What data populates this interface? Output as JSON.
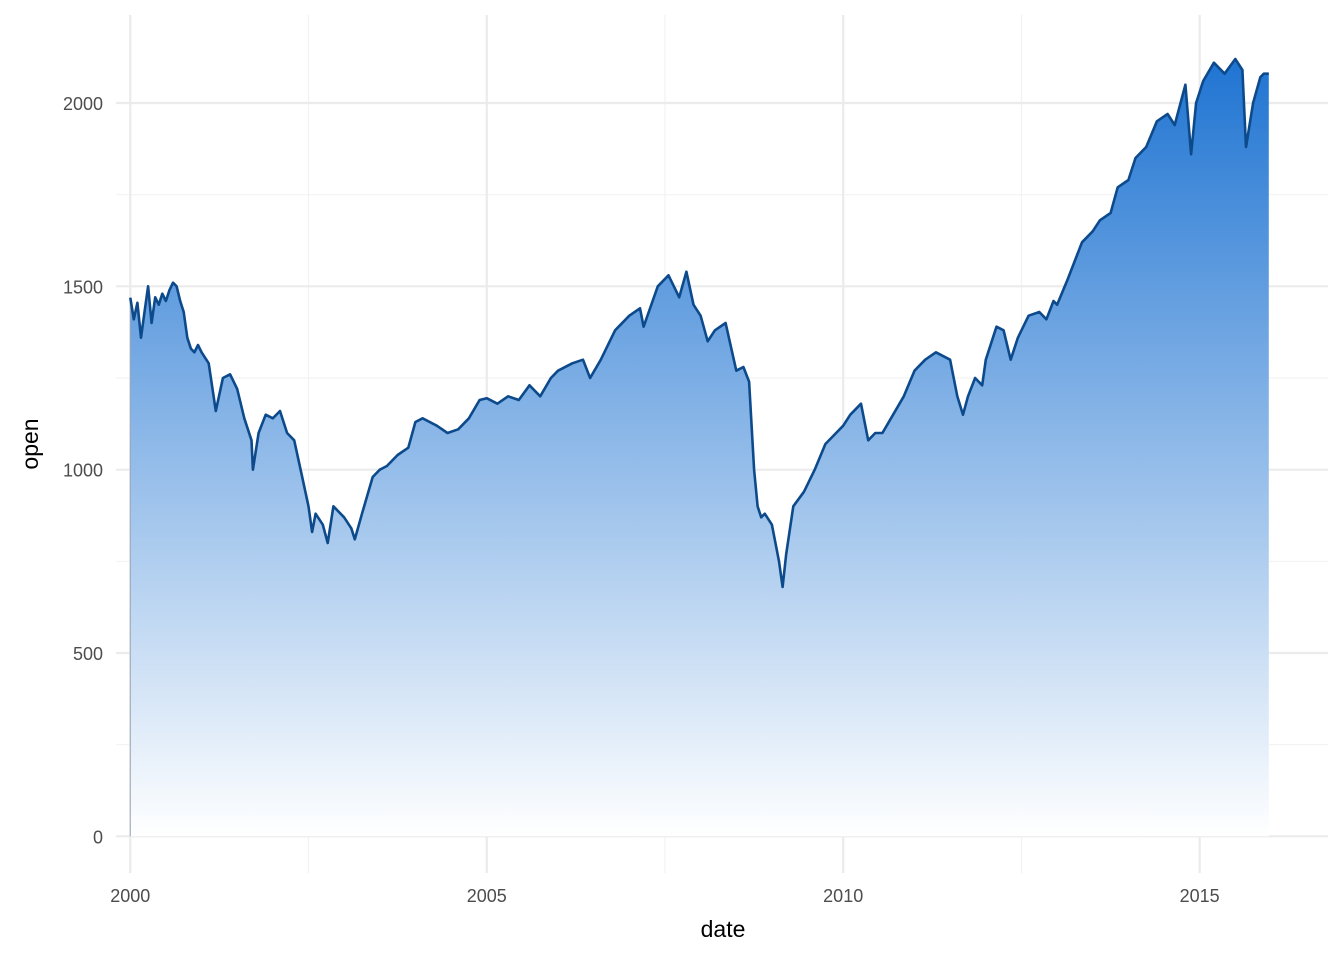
{
  "chart_data": {
    "type": "area",
    "title": "",
    "xlabel": "date",
    "ylabel": "open",
    "xlim": [
      1999.8,
      2016.8
    ],
    "ylim": [
      -100,
      2240
    ],
    "x_ticks": [
      2000,
      2005,
      2010,
      2015
    ],
    "x_tick_labels": [
      "2000",
      "2005",
      "2010",
      "2015"
    ],
    "y_ticks": [
      0,
      500,
      1000,
      1500,
      2000
    ],
    "y_tick_labels": [
      "0",
      "500",
      "1000",
      "1500",
      "2000"
    ],
    "grid": true,
    "legend": "none",
    "colors": {
      "line": "#0d4a8b",
      "fill_top": "#1f74d2",
      "fill_bottom": "#ffffff",
      "grid": "#ebebeb"
    },
    "series": [
      {
        "x": [
          2000.0,
          2000.05,
          2000.1,
          2000.15,
          2000.2,
          2000.25,
          2000.3,
          2000.35,
          2000.4,
          2000.45,
          2000.5,
          2000.55,
          2000.6,
          2000.65,
          2000.7,
          2000.75,
          2000.8,
          2000.85,
          2000.9,
          2000.95,
          2001.0,
          2001.1,
          2001.2,
          2001.3,
          2001.4,
          2001.5,
          2001.6,
          2001.7,
          2001.72,
          2001.8,
          2001.9,
          2002.0,
          2002.1,
          2002.2,
          2002.3,
          2002.4,
          2002.5,
          2002.55,
          2002.6,
          2002.7,
          2002.77,
          2002.85,
          2003.0,
          2003.1,
          2003.15,
          2003.25,
          2003.4,
          2003.5,
          2003.6,
          2003.75,
          2003.9,
          2004.0,
          2004.1,
          2004.2,
          2004.3,
          2004.45,
          2004.6,
          2004.75,
          2004.9,
          2005.0,
          2005.15,
          2005.3,
          2005.45,
          2005.6,
          2005.75,
          2005.9,
          2006.0,
          2006.2,
          2006.35,
          2006.45,
          2006.6,
          2006.8,
          2007.0,
          2007.15,
          2007.2,
          2007.4,
          2007.55,
          2007.7,
          2007.8,
          2007.9,
          2008.0,
          2008.1,
          2008.2,
          2008.35,
          2008.5,
          2008.6,
          2008.68,
          2008.75,
          2008.8,
          2008.85,
          2008.9,
          2009.0,
          2009.1,
          2009.15,
          2009.2,
          2009.3,
          2009.45,
          2009.6,
          2009.75,
          2009.9,
          2010.0,
          2010.1,
          2010.25,
          2010.35,
          2010.45,
          2010.55,
          2010.7,
          2010.85,
          2011.0,
          2011.15,
          2011.3,
          2011.5,
          2011.6,
          2011.68,
          2011.75,
          2011.85,
          2011.95,
          2012.0,
          2012.15,
          2012.25,
          2012.35,
          2012.45,
          2012.6,
          2012.75,
          2012.85,
          2012.95,
          2013.0,
          2013.15,
          2013.35,
          2013.5,
          2013.6,
          2013.75,
          2013.85,
          2014.0,
          2014.1,
          2014.25,
          2014.4,
          2014.55,
          2014.65,
          2014.8,
          2014.88,
          2014.95,
          2015.05,
          2015.2,
          2015.35,
          2015.5,
          2015.6,
          2015.65,
          2015.75,
          2015.85,
          2015.9,
          2015.97
        ],
        "values": [
          1469,
          1410,
          1455,
          1360,
          1430,
          1500,
          1400,
          1470,
          1450,
          1480,
          1460,
          1490,
          1510,
          1500,
          1460,
          1430,
          1360,
          1330,
          1320,
          1340,
          1320,
          1290,
          1160,
          1250,
          1260,
          1220,
          1140,
          1080,
          1000,
          1100,
          1150,
          1140,
          1160,
          1100,
          1080,
          990,
          900,
          830,
          880,
          850,
          800,
          900,
          870,
          840,
          810,
          880,
          980,
          1000,
          1010,
          1040,
          1060,
          1130,
          1140,
          1130,
          1120,
          1100,
          1110,
          1140,
          1190,
          1195,
          1180,
          1200,
          1190,
          1230,
          1200,
          1250,
          1270,
          1290,
          1300,
          1250,
          1300,
          1380,
          1420,
          1440,
          1390,
          1500,
          1530,
          1470,
          1540,
          1450,
          1420,
          1350,
          1380,
          1400,
          1270,
          1280,
          1240,
          1000,
          900,
          870,
          880,
          850,
          750,
          680,
          770,
          900,
          940,
          1000,
          1070,
          1100,
          1120,
          1150,
          1180,
          1080,
          1100,
          1100,
          1150,
          1200,
          1270,
          1300,
          1320,
          1300,
          1200,
          1150,
          1200,
          1250,
          1230,
          1300,
          1390,
          1380,
          1300,
          1360,
          1420,
          1430,
          1410,
          1460,
          1450,
          1520,
          1620,
          1650,
          1680,
          1700,
          1770,
          1790,
          1850,
          1880,
          1950,
          1970,
          1940,
          2050,
          1860,
          2000,
          2060,
          2110,
          2080,
          2120,
          2090,
          1880,
          2000,
          2070,
          2080,
          2080
        ]
      }
    ]
  }
}
